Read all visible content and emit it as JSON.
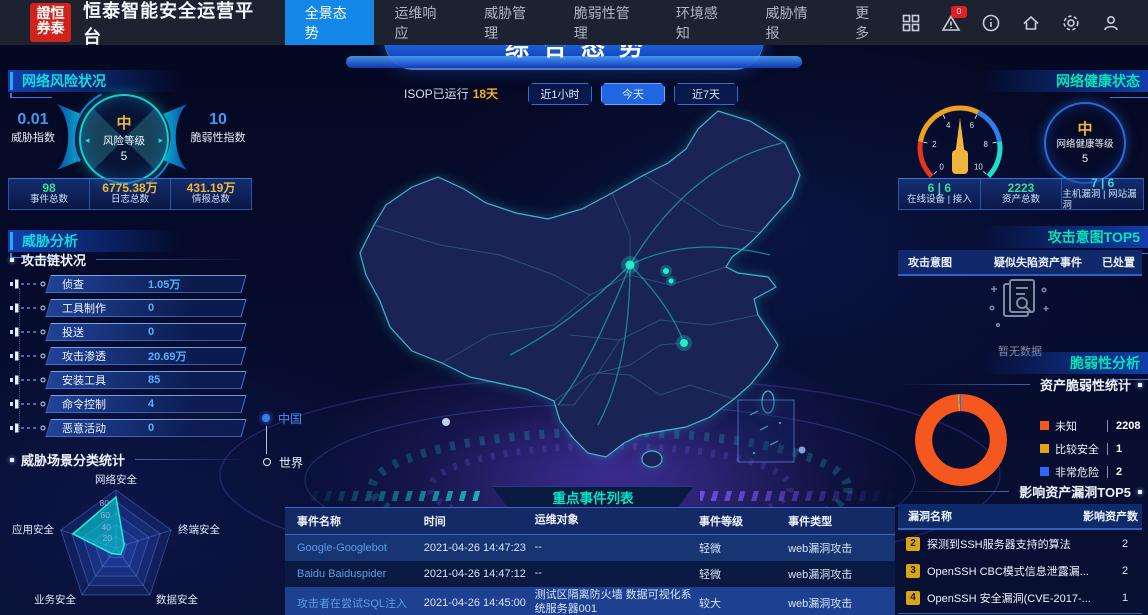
{
  "app": {
    "title": "恒泰智能安全运营平台",
    "logo_row1": "證恒",
    "logo_row2": "券泰"
  },
  "colors": {
    "accent_blue": "#1287e8",
    "header_teal": "#0adce0",
    "header_green": "#00e5b8",
    "yellow": "#f0b63e",
    "green": "#3adb96",
    "orange": "#f4581e",
    "legend_yellow": "#e3a418",
    "legend_blue": "#2e66ff",
    "alert_red": "#e02020"
  },
  "nav": {
    "items": [
      {
        "label": "全景态势"
      },
      {
        "label": "运维响应"
      },
      {
        "label": "威胁管理"
      },
      {
        "label": "脆弱性管理"
      },
      {
        "label": "环境感知"
      },
      {
        "label": "威胁情报"
      },
      {
        "label": "更多"
      }
    ],
    "alert_badge": "0"
  },
  "center": {
    "banner_title": "综合态势",
    "runtime_label": "ISOP已运行",
    "runtime_value": "18天",
    "time_filters": [
      {
        "label": "近1小时"
      },
      {
        "label": "今天"
      },
      {
        "label": "近7天"
      }
    ],
    "map_toggle": {
      "china": "中国",
      "world": "世界"
    },
    "event_list": {
      "title": "重点事件列表",
      "headers": [
        "事件名称",
        "时间",
        "运维对象",
        "事件等级",
        "事件类型"
      ],
      "rows": [
        {
          "name": "Google-Googlebot",
          "time": "2021-04-26 14:47:23",
          "target": "--",
          "level": "轻微",
          "type": "web漏洞攻击"
        },
        {
          "name": "Baidu Baiduspider",
          "time": "2021-04-26 14:47:12",
          "target": "--",
          "level": "轻微",
          "type": "web漏洞攻击"
        },
        {
          "name": "攻击者在尝试SQL注入",
          "time": "2021-04-26 14:45:00",
          "target": "测试区隔离防火墙 数据可视化系统服务器001",
          "level": "较大",
          "type": "web漏洞攻击"
        }
      ]
    }
  },
  "left": {
    "risk_panel": {
      "title": "网络风险状况",
      "threat_index": {
        "value": "0.01",
        "label": "威胁指数"
      },
      "risk_level": {
        "grade": "中",
        "label": "风险等级",
        "value": "5"
      },
      "vuln_index": {
        "value": "10",
        "label": "脆弱性指数"
      },
      "stats": [
        {
          "value": "98",
          "label": "事件总数"
        },
        {
          "value": "6775.38万",
          "label": "日志总数"
        },
        {
          "value": "431.19万",
          "label": "情报总数"
        }
      ]
    },
    "threat_panel": {
      "title": "威胁分析",
      "attack_chain_title": "攻击链状况",
      "attack_chain": [
        {
          "label": "侦查",
          "value": "1.05万"
        },
        {
          "label": "工具制作",
          "value": "0"
        },
        {
          "label": "投送",
          "value": "0"
        },
        {
          "label": "攻击渗透",
          "value": "20.69万"
        },
        {
          "label": "安装工具",
          "value": "85"
        },
        {
          "label": "命令控制",
          "value": "4"
        },
        {
          "label": "恶意活动",
          "value": "0"
        }
      ],
      "radar_title": "威胁场景分类统计"
    }
  },
  "right": {
    "health_panel": {
      "title": "网络健康状态",
      "level": {
        "grade": "中",
        "label": "网络健康等级",
        "value": "5"
      },
      "stats": [
        {
          "value": "6 | 6",
          "label": "在线设备 | 接入"
        },
        {
          "value": "2223",
          "label": "资产总数"
        },
        {
          "value": "7 | 6",
          "label": "主机漏洞 | 网站漏洞"
        }
      ]
    },
    "intent_panel": {
      "title": "攻击意图TOP5",
      "headers": [
        "攻击意图",
        "疑似失陷资产事件",
        "已处置"
      ],
      "empty_text": "暂无数据"
    },
    "vuln_panel": {
      "title": "脆弱性分析",
      "asset_title": "资产脆弱性统计",
      "legend": [
        {
          "label": "未知",
          "value": "2208",
          "color": "#f4581e"
        },
        {
          "label": "比较安全",
          "value": "1",
          "color": "#e3a418"
        },
        {
          "label": "非常危险",
          "value": "2",
          "color": "#2e66ff"
        }
      ],
      "top5_title": "影响资产漏洞TOP5",
      "top5_headers": [
        "漏洞名称",
        "影响资产数"
      ],
      "top5_rows": [
        {
          "rank": "2",
          "name": "探测到SSH服务器支持的算法",
          "count": "2"
        },
        {
          "rank": "3",
          "name": "OpenSSH CBC模式信息泄露漏...",
          "count": "2"
        },
        {
          "rank": "4",
          "name": "OpenSSH 安全漏洞(CVE-2017-...",
          "count": "1"
        }
      ]
    }
  },
  "chart_data": [
    {
      "type": "radar",
      "title": "威胁场景分类统计",
      "categories": [
        "网络安全",
        "终端安全",
        "数据安全",
        "业务安全",
        "应用安全"
      ],
      "values": [
        88,
        15,
        14,
        12,
        78
      ],
      "max": 100,
      "ticks": [
        20,
        40,
        60,
        80
      ]
    },
    {
      "type": "pie",
      "title": "资产脆弱性统计",
      "categories": [
        "未知",
        "比较安全",
        "非常危险"
      ],
      "values": [
        2208,
        1,
        2
      ],
      "colors": [
        "#f4581e",
        "#e3a418",
        "#2e66ff"
      ]
    },
    {
      "type": "gauge",
      "title": "网络健康等级",
      "grade": "中",
      "value": 5,
      "min": 0,
      "max": 10,
      "ticks": [
        0,
        2,
        4,
        6,
        8,
        10
      ]
    },
    {
      "type": "gauge",
      "title": "风险等级",
      "grade": "中",
      "value": 5,
      "threat_index": 0.01,
      "vulnerability_index": 10
    }
  ]
}
